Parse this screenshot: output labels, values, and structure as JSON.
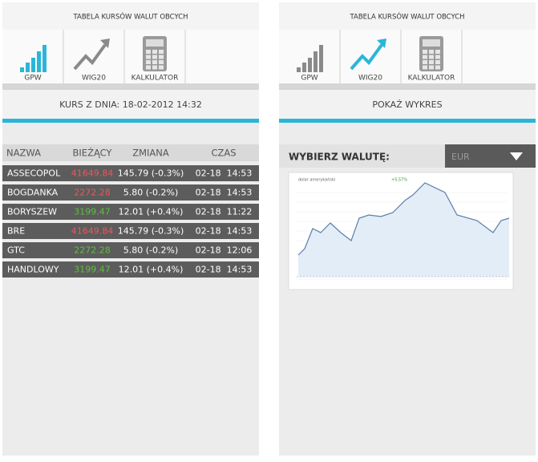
{
  "screens": [
    {
      "header": "TABELA KURSÓW WALUT OBCYCH",
      "tabs": [
        "GPW",
        "WIG20",
        "KALKULATOR"
      ],
      "active_tab": 0,
      "subtitle": "KURS Z DNIA: 18-02-2012 14:32",
      "table": {
        "columns": [
          "NAZWA",
          "BIEŻĄCY",
          "ZMIANA",
          "CZAS"
        ],
        "rows": [
          {
            "name": "ASSECOPOL",
            "value": "41649.84",
            "change": "145.79 (-0.3%)",
            "time": "02-18  14:53",
            "value_color": "#e8585c"
          },
          {
            "name": "BOGDANKA",
            "value": "2272.28",
            "change": "5.80 (-0.2%)",
            "time": "02-18  14:53",
            "value_color": "#e8585c"
          },
          {
            "name": "BORYSZEW",
            "value": "3199.47",
            "change": "12.01 (+0.4%)",
            "time": "02-18  11:22",
            "value_color": "#5cc03c"
          },
          {
            "name": "BRE",
            "value": "41649.84",
            "change": "145.79 (-0.3%)",
            "time": "02-18  14:53",
            "value_color": "#e8585c"
          },
          {
            "name": "GTC",
            "value": "2272.28",
            "change": "5.80 (-0.2%)",
            "time": "02-18  12:06",
            "value_color": "#5cc03c"
          },
          {
            "name": "HANDLOWY",
            "value": "3199.47",
            "change": "12.01 (+0.4%)",
            "time": "02-18  14:53",
            "value_color": "#5cc03c"
          }
        ]
      }
    },
    {
      "header": "TABELA KURSÓW WALUT OBCYCH",
      "tabs": [
        "GPW",
        "WIG20",
        "KALKULATOR"
      ],
      "active_tab": 1,
      "subtitle": "POKAŻ WYKRES",
      "select_label": "WYBIERZ WALUTĘ:",
      "select_value": "EUR",
      "chart": {
        "name": "dolar amerykański",
        "change": "+5,57%"
      }
    }
  ]
}
